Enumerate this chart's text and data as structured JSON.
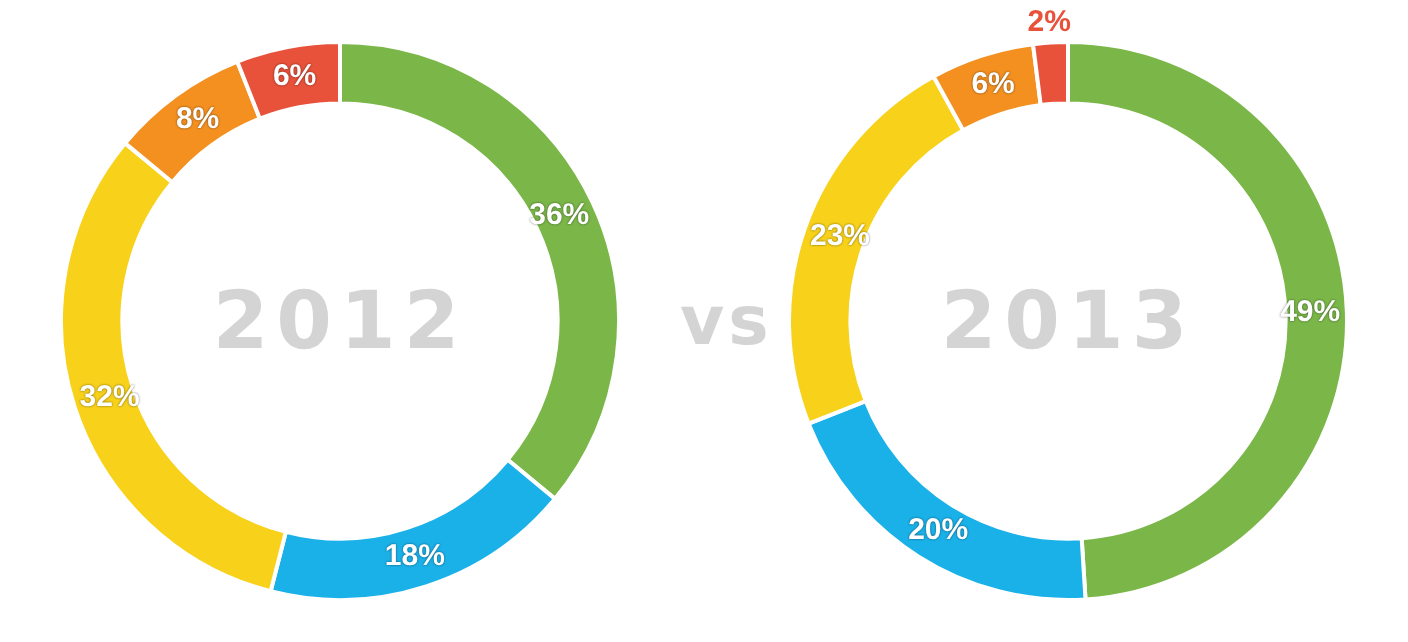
{
  "chart_data": [
    {
      "type": "donut",
      "title": "2012",
      "categories": [
        null,
        null,
        null,
        null,
        null
      ],
      "values": [
        36,
        18,
        32,
        8,
        6
      ],
      "value_labels": [
        "36%",
        "18%",
        "32%",
        "8%",
        "6%"
      ],
      "colors": [
        "#7ab648",
        "#1ab0e8",
        "#f7d11a",
        "#f39020",
        "#e8513a"
      ],
      "annotations": [
        "vs"
      ]
    },
    {
      "type": "donut",
      "title": "2013",
      "categories": [
        null,
        null,
        null,
        null,
        null
      ],
      "values": [
        49,
        20,
        23,
        6,
        2
      ],
      "value_labels": [
        "49%",
        "20%",
        "23%",
        "6%",
        "2%"
      ],
      "colors": [
        "#7ab648",
        "#1ab0e8",
        "#f7d11a",
        "#f39020",
        "#e8513a"
      ]
    }
  ]
}
